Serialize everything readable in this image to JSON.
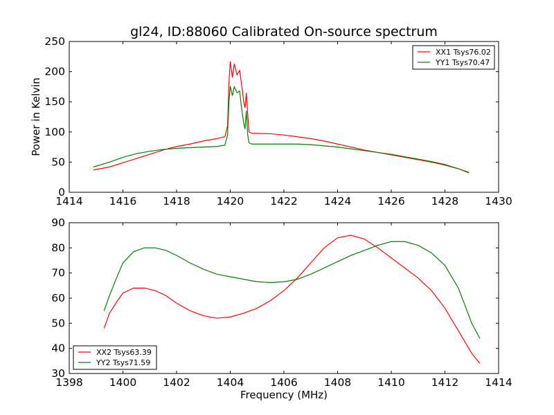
{
  "chart_data": [
    {
      "type": "line",
      "title": "gl24, ID:88060 Calibrated On-source spectrum",
      "xlabel": "",
      "ylabel": "Power in Kelvin",
      "xlim": [
        1414,
        1430
      ],
      "ylim": [
        0,
        250
      ],
      "xticks": [
        "1414",
        "1416",
        "1418",
        "1420",
        "1422",
        "1424",
        "1426",
        "1428",
        "1430"
      ],
      "yticks": [
        "0",
        "50",
        "100",
        "150",
        "200",
        "250"
      ],
      "legend_position": "top-right",
      "series": [
        {
          "name": "XX1 Tsys76.02",
          "color": "#ff0000",
          "points": [
            [
              1414.9,
              37
            ],
            [
              1415.5,
              42
            ],
            [
              1416.0,
              49
            ],
            [
              1416.5,
              56
            ],
            [
              1417.0,
              63
            ],
            [
              1417.5,
              70
            ],
            [
              1418.0,
              76
            ],
            [
              1418.5,
              80
            ],
            [
              1419.0,
              85
            ],
            [
              1419.5,
              89
            ],
            [
              1419.8,
              92
            ],
            [
              1419.9,
              110
            ],
            [
              1419.95,
              180
            ],
            [
              1420.0,
              217
            ],
            [
              1420.08,
              190
            ],
            [
              1420.15,
              213
            ],
            [
              1420.25,
              195
            ],
            [
              1420.35,
              202
            ],
            [
              1420.45,
              170
            ],
            [
              1420.5,
              150
            ],
            [
              1420.55,
              140
            ],
            [
              1420.6,
              165
            ],
            [
              1420.65,
              130
            ],
            [
              1420.7,
              100
            ],
            [
              1420.8,
              98
            ],
            [
              1421.5,
              97
            ],
            [
              1422.0,
              95
            ],
            [
              1422.5,
              92
            ],
            [
              1423.0,
              89
            ],
            [
              1423.5,
              85
            ],
            [
              1424.0,
              80
            ],
            [
              1424.5,
              75
            ],
            [
              1425.0,
              70
            ],
            [
              1425.5,
              66
            ],
            [
              1426.0,
              62
            ],
            [
              1426.5,
              58
            ],
            [
              1427.0,
              54
            ],
            [
              1427.5,
              50
            ],
            [
              1428.0,
              45
            ],
            [
              1428.5,
              39
            ],
            [
              1428.9,
              33
            ]
          ]
        },
        {
          "name": "YY1 Tsys70.47",
          "color": "#008000",
          "points": [
            [
              1414.9,
              42
            ],
            [
              1415.5,
              50
            ],
            [
              1416.0,
              58
            ],
            [
              1416.5,
              64
            ],
            [
              1417.0,
              68
            ],
            [
              1417.5,
              71
            ],
            [
              1418.0,
              73
            ],
            [
              1418.5,
              74
            ],
            [
              1419.0,
              75
            ],
            [
              1419.5,
              76
            ],
            [
              1419.8,
              78
            ],
            [
              1419.9,
              95
            ],
            [
              1419.95,
              150
            ],
            [
              1420.0,
              176
            ],
            [
              1420.08,
              160
            ],
            [
              1420.15,
              175
            ],
            [
              1420.25,
              165
            ],
            [
              1420.35,
              168
            ],
            [
              1420.42,
              140
            ],
            [
              1420.5,
              115
            ],
            [
              1420.55,
              105
            ],
            [
              1420.6,
              135
            ],
            [
              1420.65,
              95
            ],
            [
              1420.7,
              82
            ],
            [
              1420.8,
              80
            ],
            [
              1421.5,
              80
            ],
            [
              1422.0,
              80
            ],
            [
              1422.5,
              80
            ],
            [
              1423.0,
              79
            ],
            [
              1423.5,
              77
            ],
            [
              1424.0,
              75
            ],
            [
              1424.5,
              72
            ],
            [
              1425.0,
              69
            ],
            [
              1425.5,
              66
            ],
            [
              1426.0,
              63
            ],
            [
              1426.5,
              59
            ],
            [
              1427.0,
              55
            ],
            [
              1427.5,
              51
            ],
            [
              1428.0,
              46
            ],
            [
              1428.5,
              39
            ],
            [
              1428.9,
              32
            ]
          ]
        }
      ]
    },
    {
      "type": "line",
      "title": "",
      "xlabel": "Frequency (MHz)",
      "ylabel": "",
      "xlim": [
        1398,
        1414
      ],
      "ylim": [
        30,
        90
      ],
      "xticks": [
        "1398",
        "1400",
        "1402",
        "1404",
        "1406",
        "1408",
        "1410",
        "1412",
        "1414"
      ],
      "yticks": [
        "30",
        "40",
        "50",
        "60",
        "70",
        "80",
        "90"
      ],
      "legend_position": "bottom-left",
      "series": [
        {
          "name": "XX2 Tsys63.39",
          "color": "#ff0000",
          "points": [
            [
              1399.3,
              48
            ],
            [
              1399.5,
              54
            ],
            [
              1399.8,
              59
            ],
            [
              1400.0,
              62
            ],
            [
              1400.4,
              64
            ],
            [
              1400.8,
              64
            ],
            [
              1401.2,
              63
            ],
            [
              1401.6,
              61
            ],
            [
              1402.0,
              58
            ],
            [
              1402.5,
              55
            ],
            [
              1403.0,
              53
            ],
            [
              1403.5,
              52
            ],
            [
              1404.0,
              52.5
            ],
            [
              1404.5,
              54
            ],
            [
              1405.0,
              56
            ],
            [
              1405.5,
              59
            ],
            [
              1406.0,
              63
            ],
            [
              1406.5,
              68
            ],
            [
              1407.0,
              74
            ],
            [
              1407.5,
              80
            ],
            [
              1408.0,
              84
            ],
            [
              1408.5,
              85
            ],
            [
              1409.0,
              83.5
            ],
            [
              1409.5,
              80
            ],
            [
              1410.0,
              76
            ],
            [
              1410.5,
              72
            ],
            [
              1411.0,
              68
            ],
            [
              1411.5,
              63
            ],
            [
              1412.0,
              56
            ],
            [
              1412.5,
              47
            ],
            [
              1413.0,
              38
            ],
            [
              1413.3,
              34
            ]
          ]
        },
        {
          "name": "YY2 Tsys71.59",
          "color": "#008000",
          "points": [
            [
              1399.3,
              55
            ],
            [
              1399.5,
              61
            ],
            [
              1399.8,
              69
            ],
            [
              1400.0,
              74
            ],
            [
              1400.4,
              78.5
            ],
            [
              1400.8,
              80
            ],
            [
              1401.2,
              80
            ],
            [
              1401.6,
              79
            ],
            [
              1402.0,
              77
            ],
            [
              1402.5,
              74
            ],
            [
              1403.0,
              71.5
            ],
            [
              1403.5,
              69.5
            ],
            [
              1404.0,
              68.5
            ],
            [
              1404.5,
              67.5
            ],
            [
              1405.0,
              66.5
            ],
            [
              1405.5,
              66.2
            ],
            [
              1406.0,
              66.5
            ],
            [
              1406.5,
              67.5
            ],
            [
              1407.0,
              69.5
            ],
            [
              1407.5,
              72
            ],
            [
              1408.0,
              74.5
            ],
            [
              1408.5,
              77
            ],
            [
              1409.0,
              79
            ],
            [
              1409.5,
              81
            ],
            [
              1410.0,
              82.5
            ],
            [
              1410.5,
              82.5
            ],
            [
              1411.0,
              81
            ],
            [
              1411.5,
              78
            ],
            [
              1412.0,
              73
            ],
            [
              1412.5,
              64
            ],
            [
              1413.0,
              50
            ],
            [
              1413.3,
              44
            ]
          ]
        }
      ]
    }
  ]
}
